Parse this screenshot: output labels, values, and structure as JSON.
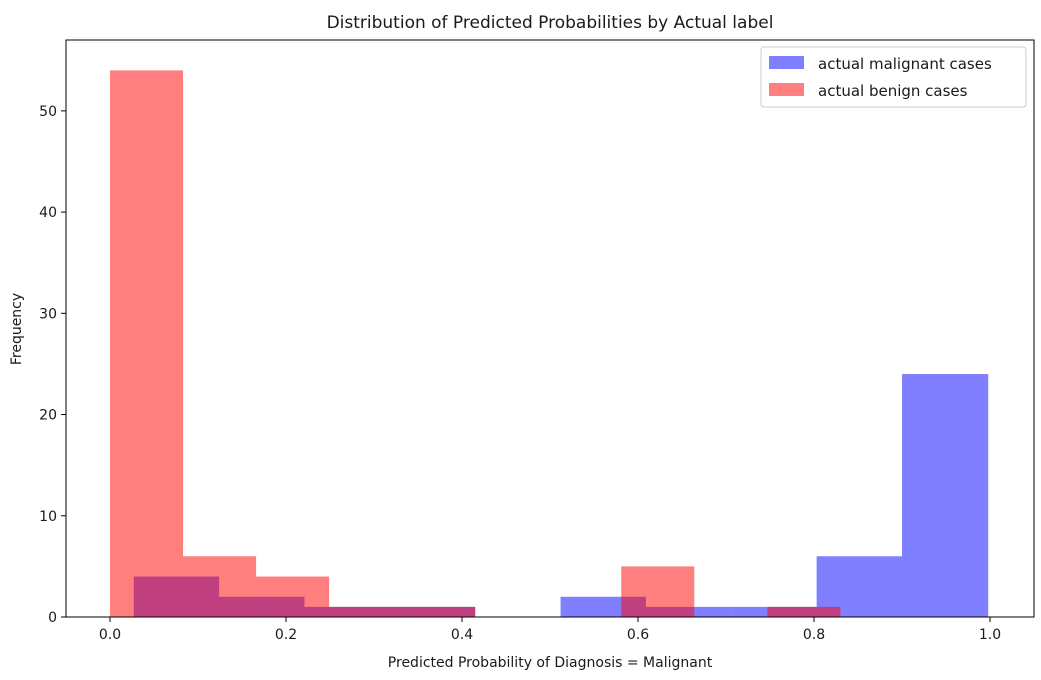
{
  "chart_data": {
    "type": "histogram",
    "title": "Distribution of Predicted Probabilities by Actual label",
    "xlabel": "Predicted Probability of Diagnosis = Malignant",
    "ylabel": "Frequency",
    "xlim": [
      -0.05,
      1.05
    ],
    "ylim": [
      0,
      57
    ],
    "xticks": [
      0.0,
      0.2,
      0.4,
      0.6,
      0.8,
      1.0
    ],
    "xtick_labels": [
      "0.0",
      "0.2",
      "0.4",
      "0.6",
      "0.8",
      "1.0"
    ],
    "yticks": [
      0,
      10,
      20,
      30,
      40,
      50
    ],
    "ytick_labels": [
      "0",
      "10",
      "20",
      "30",
      "40",
      "50"
    ],
    "grid": false,
    "legend_position": "top-right",
    "series": [
      {
        "name": "actual malignant cases",
        "color": "#0000ff",
        "opacity": 0.5,
        "bins": [
          {
            "x0": 0.027,
            "x1": 0.124,
            "count": 4
          },
          {
            "x0": 0.124,
            "x1": 0.221,
            "count": 2
          },
          {
            "x0": 0.221,
            "x1": 0.318,
            "count": 1
          },
          {
            "x0": 0.318,
            "x1": 0.415,
            "count": 1
          },
          {
            "x0": 0.415,
            "x1": 0.512,
            "count": 0
          },
          {
            "x0": 0.512,
            "x1": 0.609,
            "count": 2
          },
          {
            "x0": 0.609,
            "x1": 0.706,
            "count": 1
          },
          {
            "x0": 0.706,
            "x1": 0.803,
            "count": 1
          },
          {
            "x0": 0.803,
            "x1": 0.9,
            "count": 6
          },
          {
            "x0": 0.9,
            "x1": 0.998,
            "count": 24
          }
        ]
      },
      {
        "name": "actual benign cases",
        "color": "#ff0000",
        "opacity": 0.5,
        "bins": [
          {
            "x0": 0.0,
            "x1": 0.083,
            "count": 54
          },
          {
            "x0": 0.083,
            "x1": 0.166,
            "count": 6
          },
          {
            "x0": 0.166,
            "x1": 0.249,
            "count": 4
          },
          {
            "x0": 0.249,
            "x1": 0.332,
            "count": 1
          },
          {
            "x0": 0.332,
            "x1": 0.415,
            "count": 1
          },
          {
            "x0": 0.415,
            "x1": 0.498,
            "count": 0
          },
          {
            "x0": 0.498,
            "x1": 0.581,
            "count": 0
          },
          {
            "x0": 0.581,
            "x1": 0.664,
            "count": 5
          },
          {
            "x0": 0.664,
            "x1": 0.747,
            "count": 0
          },
          {
            "x0": 0.747,
            "x1": 0.83,
            "count": 1
          }
        ]
      }
    ]
  }
}
